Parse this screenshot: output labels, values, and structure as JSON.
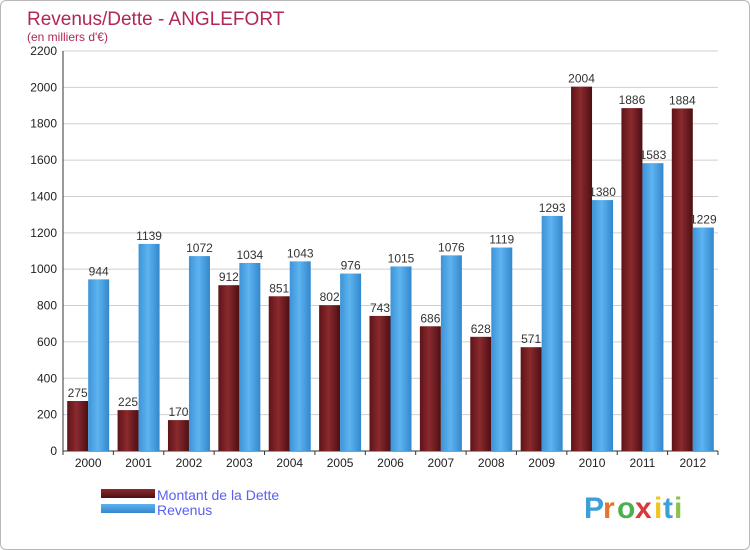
{
  "chart_data": {
    "type": "bar",
    "title": "Revenus/Dette - ANGLEFORT",
    "subtitle": "(en milliers d'€)",
    "categories": [
      "2000",
      "2001",
      "2002",
      "2003",
      "2004",
      "2005",
      "2006",
      "2007",
      "2008",
      "2009",
      "2010",
      "2011",
      "2012"
    ],
    "series": [
      {
        "name": "Montant de la Dette",
        "values": [
          275,
          225,
          170,
          912,
          851,
          802,
          743,
          686,
          628,
          571,
          2004,
          1886,
          1884
        ],
        "color": "#7a1f24"
      },
      {
        "name": "Revenus",
        "values": [
          944,
          1139,
          1072,
          1034,
          1043,
          976,
          1015,
          1076,
          1119,
          1293,
          1380,
          1583,
          1229
        ],
        "color": "#4aa3e6"
      }
    ],
    "ylim": [
      0,
      2200
    ],
    "yticks": [
      0,
      200,
      400,
      600,
      800,
      1000,
      1200,
      1400,
      1600,
      1800,
      2000,
      2200
    ],
    "grid": true,
    "legend": "bottom-left"
  },
  "logo": {
    "letters": [
      "P",
      "r",
      "o",
      "x",
      "i",
      "t",
      "i"
    ],
    "colors": [
      "#3b9fd8",
      "#e8742a",
      "#4caf50",
      "#d63a3a",
      "#f0c419",
      "#3b9fd8",
      "#8bc34a"
    ]
  }
}
